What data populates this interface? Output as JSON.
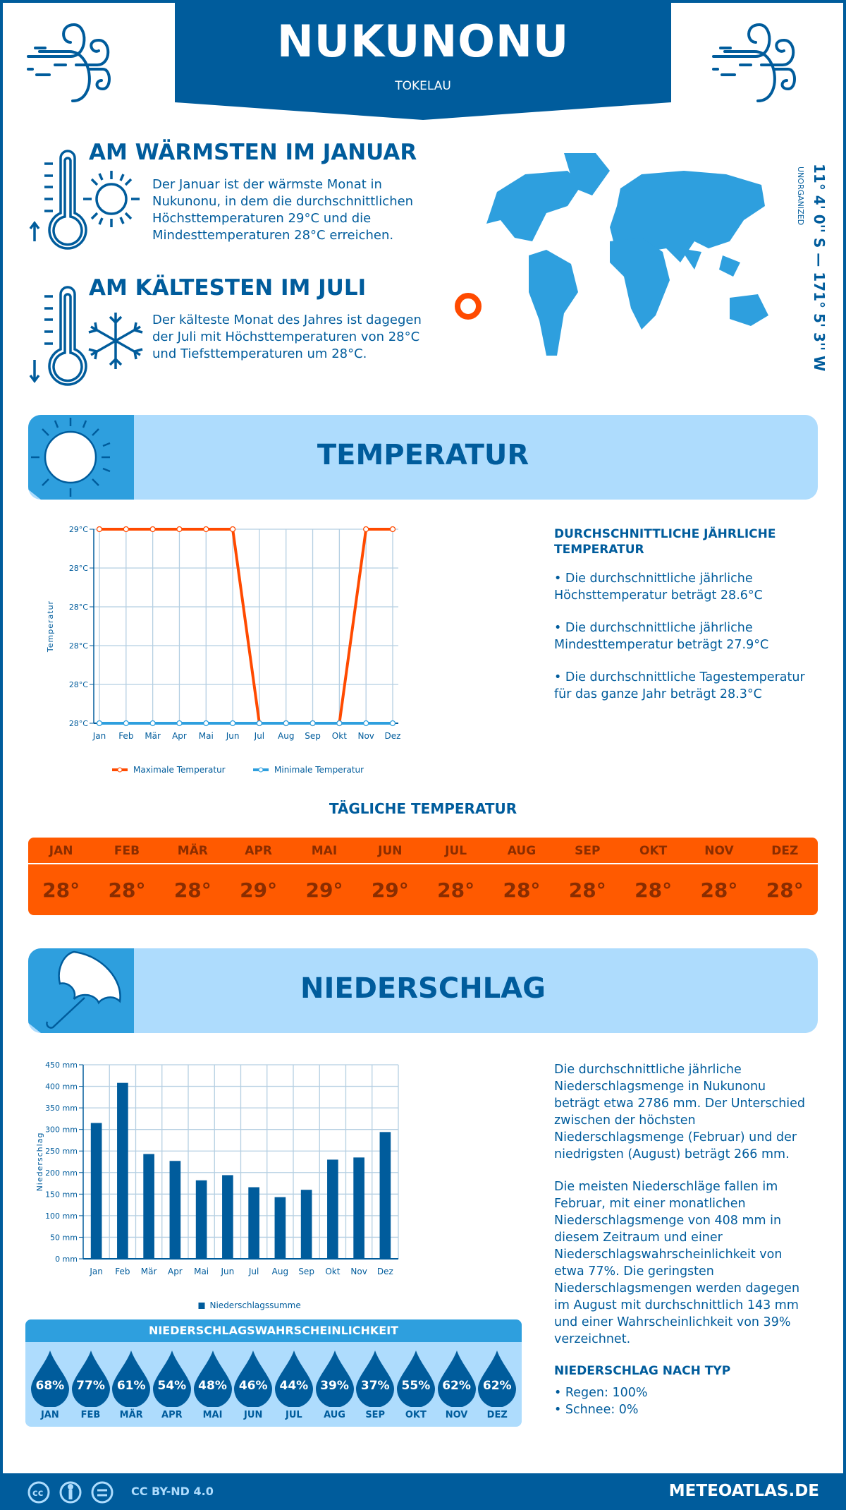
{
  "header": {
    "title": "NUKUNONU",
    "subtitle": "TOKELAU",
    "coordinates": "11° 4' 0'' S — 171° 5' 3'' W",
    "region": "UNORGANIZED"
  },
  "warmest": {
    "title": "AM WÄRMSTEN IM JANUAR",
    "text": "Der Januar ist der wärmste Monat in Nukunonu, in dem die durchschnittlichen Höchsttemperaturen 29°C und die Mindesttemperaturen 28°C erreichen."
  },
  "coldest": {
    "title": "AM KÄLTESTEN IM JULI",
    "text": "Der kälteste Monat des Jahres ist dagegen der Juli mit Höchsttemperaturen von 28°C und Tiefsttemperaturen um 28°C."
  },
  "temperature_section": {
    "title": "TEMPERATUR",
    "side_title": "DURCHSCHNITTLICHE JÄHRLICHE TEMPERATUR",
    "bullets": [
      "• Die durchschnittliche jährliche Höchsttemperatur beträgt 28.6°C",
      "• Die durchschnittliche jährliche Mindesttemperatur beträgt 27.9°C",
      "• Die durchschnittliche Tagestemperatur für das ganze Jahr beträgt 28.3°C"
    ]
  },
  "daily": {
    "title": "TÄGLICHE TEMPERATUR",
    "months": [
      "JAN",
      "FEB",
      "MÄR",
      "APR",
      "MAI",
      "JUN",
      "JUL",
      "AUG",
      "SEP",
      "OKT",
      "NOV",
      "DEZ"
    ],
    "values": [
      "28°",
      "28°",
      "28°",
      "29°",
      "29°",
      "29°",
      "28°",
      "28°",
      "28°",
      "28°",
      "28°",
      "28°"
    ]
  },
  "precip_section": {
    "title": "NIEDERSCHLAG",
    "text1": "Die durchschnittliche jährliche Niederschlagsmenge in Nukunonu beträgt etwa 2786 mm. Der Unterschied zwischen der höchsten Niederschlagsmenge (Februar) und der niedrigsten (August) beträgt 266 mm.",
    "text2": "Die meisten Niederschläge fallen im Februar, mit einer monatlichen Niederschlagsmenge von 408 mm in diesem Zeitraum und einer Niederschlagswahrscheinlichkeit von etwa 77%. Die geringsten Niederschlagsmengen werden dagegen im August mit durchschnittlich 143 mm und einer Wahrscheinlichkeit von 39% verzeichnet.",
    "type_title": "NIEDERSCHLAG NACH TYP",
    "types": [
      "• Regen: 100%",
      "• Schnee: 0%"
    ]
  },
  "probability": {
    "title": "NIEDERSCHLAGSWAHRSCHEINLICHKEIT",
    "months": [
      "JAN",
      "FEB",
      "MÄR",
      "APR",
      "MAI",
      "JUN",
      "JUL",
      "AUG",
      "SEP",
      "OKT",
      "NOV",
      "DEZ"
    ],
    "values": [
      "68%",
      "77%",
      "61%",
      "54%",
      "48%",
      "46%",
      "44%",
      "39%",
      "37%",
      "55%",
      "62%",
      "62%"
    ]
  },
  "footer": {
    "license": "CC BY-ND 4.0",
    "site": "METEOATLAS.DE"
  },
  "colors": {
    "primary": "#005c9c",
    "light": "#aedcfd",
    "mid": "#2e9fde",
    "orange": "#ff5a00",
    "marker": "#ff4a00"
  },
  "chart_data": [
    {
      "type": "line",
      "ylabel": "Temperatur",
      "categories": [
        "Jan",
        "Feb",
        "Mär",
        "Apr",
        "Mai",
        "Jun",
        "Jul",
        "Aug",
        "Sep",
        "Okt",
        "Nov",
        "Dez"
      ],
      "yticks": [
        {
          "value": 28,
          "label": "28°C"
        },
        {
          "value": 28.2,
          "label": "28°C"
        },
        {
          "value": 28.4,
          "label": "28°C"
        },
        {
          "value": 28.6,
          "label": "28°C"
        },
        {
          "value": 28.8,
          "label": "28°C"
        },
        {
          "value": 29,
          "label": "29°C"
        }
      ],
      "ylim": [
        28,
        29
      ],
      "grid": true,
      "legend": "bottom",
      "series": [
        {
          "name": "Maximale Temperatur",
          "color": "#ff4a00",
          "values": [
            29,
            29,
            29,
            29,
            29,
            29,
            28,
            28,
            28,
            28,
            29,
            29
          ]
        },
        {
          "name": "Minimale Temperatur",
          "color": "#2e9fde",
          "values": [
            28,
            28,
            28,
            28,
            28,
            28,
            28,
            28,
            28,
            28,
            28,
            28
          ]
        }
      ]
    },
    {
      "type": "bar",
      "ylabel": "Niederschlag",
      "categories": [
        "Jan",
        "Feb",
        "Mär",
        "Apr",
        "Mai",
        "Jun",
        "Jul",
        "Aug",
        "Sep",
        "Okt",
        "Nov",
        "Dez"
      ],
      "yticks": [
        {
          "value": 0,
          "label": "0 mm"
        },
        {
          "value": 50,
          "label": "50 mm"
        },
        {
          "value": 100,
          "label": "100 mm"
        },
        {
          "value": 150,
          "label": "150 mm"
        },
        {
          "value": 200,
          "label": "200 mm"
        },
        {
          "value": 250,
          "label": "250 mm"
        },
        {
          "value": 300,
          "label": "300 mm"
        },
        {
          "value": 350,
          "label": "350 mm"
        },
        {
          "value": 400,
          "label": "400 mm"
        },
        {
          "value": 450,
          "label": "450 mm"
        }
      ],
      "ylim": [
        0,
        450
      ],
      "grid": true,
      "legend": "bottom",
      "series": [
        {
          "name": "Niederschlagssumme",
          "color": "#005c9c",
          "values": [
            315,
            408,
            243,
            227,
            182,
            194,
            166,
            143,
            160,
            230,
            235,
            294
          ]
        }
      ]
    }
  ]
}
